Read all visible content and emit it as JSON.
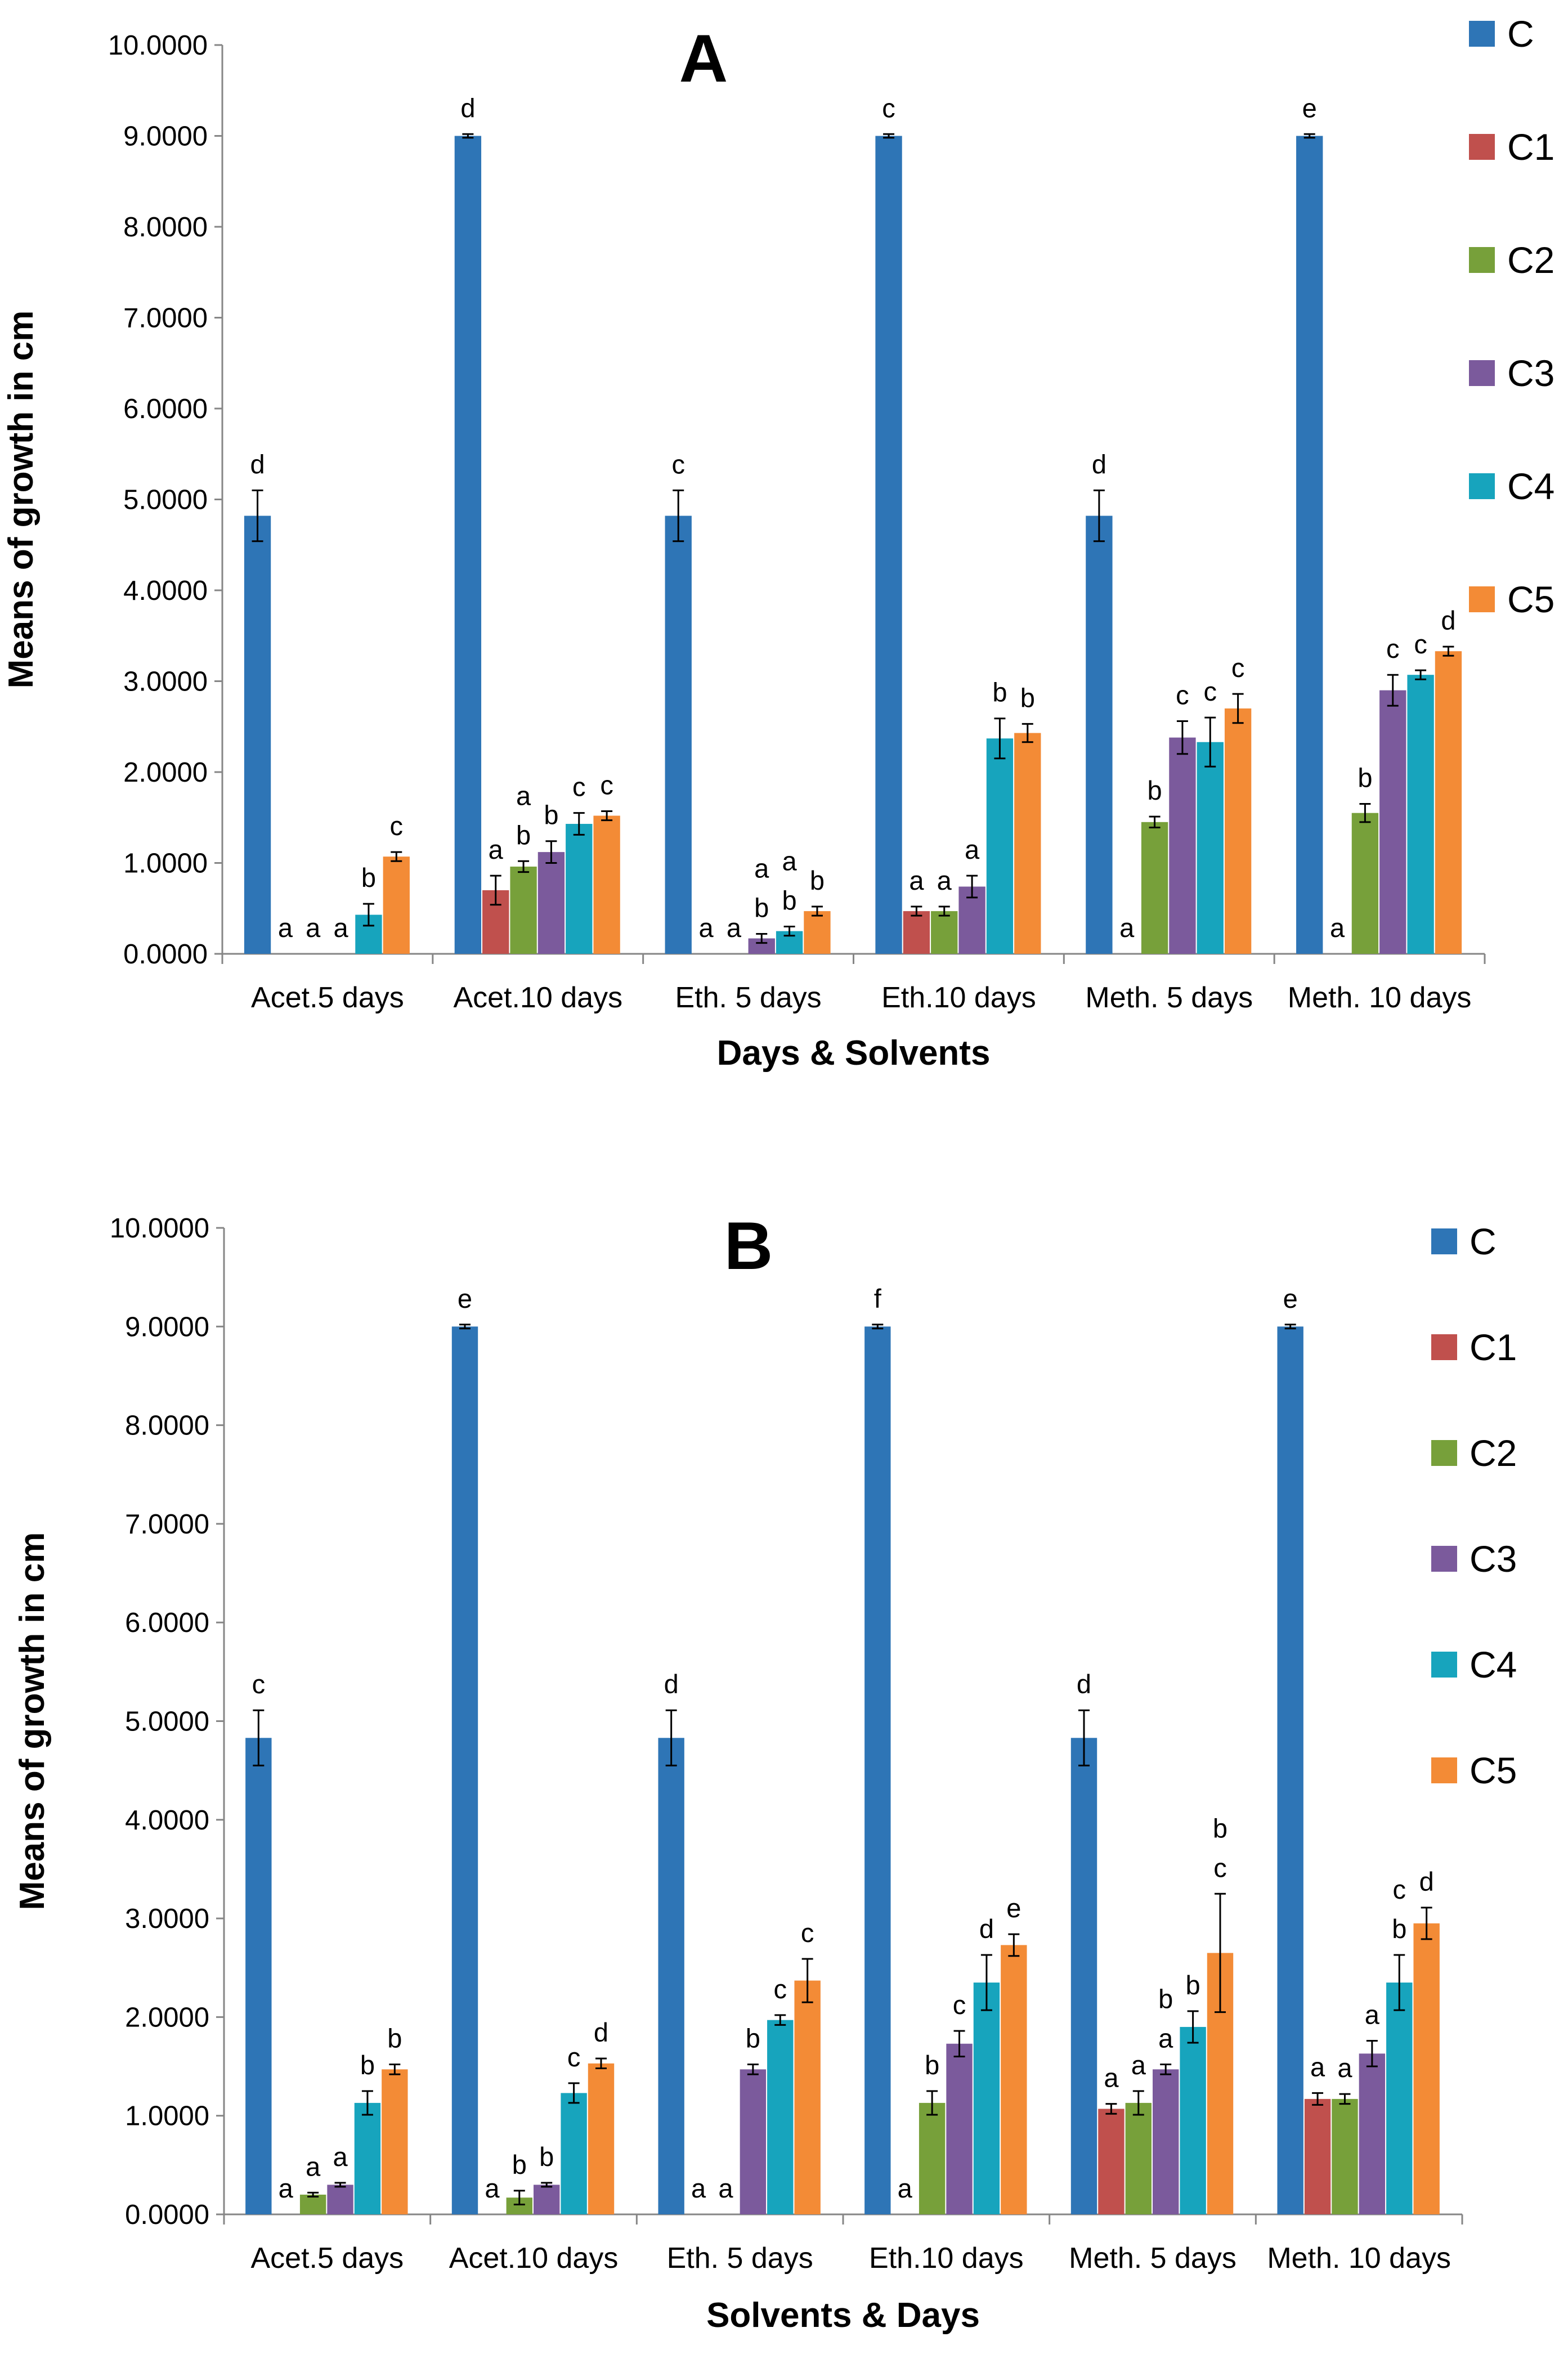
{
  "chart_data": [
    {
      "type": "bar",
      "title": "A",
      "xlabel": "Days & Solvents",
      "ylabel": "Means of growth in cm",
      "ylim": [
        0,
        10
      ],
      "yticks": [
        "0.0000",
        "1.0000",
        "2.0000",
        "3.0000",
        "4.0000",
        "5.0000",
        "6.0000",
        "7.0000",
        "8.0000",
        "9.0000",
        "10.0000"
      ],
      "categories": [
        "Acet.5 days",
        "Acet.10 days",
        "Eth. 5 days",
        "Eth.10 days",
        "Meth. 5 days",
        "Meth. 10 days"
      ],
      "legend_position": "right",
      "series": [
        {
          "name": "C",
          "color": "#2E75B6",
          "values": [
            4.82,
            9.0,
            4.82,
            9.0,
            4.82,
            9.0
          ],
          "errors": [
            0.28,
            0.02,
            0.28,
            0.02,
            0.28,
            0.02
          ],
          "letters": [
            "d",
            "d",
            "c",
            "c",
            "d",
            "e"
          ]
        },
        {
          "name": "C1",
          "color": "#C0504D",
          "values": [
            0,
            0.7,
            0,
            0.47,
            0,
            0
          ],
          "errors": [
            0,
            0.16,
            0,
            0.05,
            0,
            0
          ],
          "letters": [
            "a",
            "a",
            "a",
            "a",
            "a",
            "a"
          ]
        },
        {
          "name": "C2",
          "color": "#77A03A",
          "values": [
            0,
            0.96,
            0,
            0.47,
            1.45,
            1.55
          ],
          "errors": [
            0,
            0.06,
            0,
            0.05,
            0.06,
            0.1
          ],
          "letters": [
            "a",
            "b",
            "a",
            "a",
            "b",
            "b"
          ]
        },
        {
          "name": "C3",
          "color": "#7B5A9C",
          "values": [
            0,
            1.12,
            0.17,
            0.74,
            2.38,
            2.9
          ],
          "errors": [
            0,
            0.12,
            0.05,
            0.12,
            0.18,
            0.17
          ],
          "letters": [
            "a",
            "b",
            "b",
            "a",
            "c",
            "c"
          ]
        },
        {
          "name": "C4",
          "color": "#17A4BD",
          "values": [
            0.43,
            1.43,
            0.25,
            2.37,
            2.33,
            3.07
          ],
          "errors": [
            0.12,
            0.12,
            0.05,
            0.22,
            0.27,
            0.05
          ],
          "letters": [
            "b",
            "c",
            "b",
            "b",
            "c",
            "c"
          ]
        },
        {
          "name": "C5",
          "color": "#F38B36",
          "values": [
            1.07,
            1.52,
            0.47,
            2.43,
            2.7,
            3.33
          ],
          "errors": [
            0.05,
            0.05,
            0.05,
            0.1,
            0.16,
            0.05
          ],
          "letters": [
            "c",
            "c",
            "b",
            "b",
            "c",
            "d"
          ]
        }
      ],
      "extra_letters": [
        {
          "series": "C2",
          "category": "Acet.10 days",
          "text": "a"
        },
        {
          "series": "C4",
          "category": "Eth. 5 days",
          "text": "a"
        },
        {
          "series": "C3",
          "category": "Eth. 5 days",
          "text": "a"
        }
      ]
    },
    {
      "type": "bar",
      "title": "B",
      "xlabel": "Solvents & Days",
      "ylabel": "Means of growth in cm",
      "ylim": [
        0,
        10
      ],
      "yticks": [
        "0.0000",
        "1.0000",
        "2.0000",
        "3.0000",
        "4.0000",
        "5.0000",
        "6.0000",
        "7.0000",
        "8.0000",
        "9.0000",
        "10.0000"
      ],
      "categories": [
        "Acet.5 days",
        "Acet.10 days",
        "Eth. 5 days",
        "Eth.10 days",
        "Meth. 5 days",
        "Meth. 10 days"
      ],
      "legend_position": "right",
      "series": [
        {
          "name": "C",
          "color": "#2E75B6",
          "values": [
            4.83,
            9.0,
            4.83,
            9.0,
            4.83,
            9.0
          ],
          "errors": [
            0.28,
            0.02,
            0.28,
            0.02,
            0.28,
            0.02
          ],
          "letters": [
            "c",
            "e",
            "d",
            "f",
            "d",
            "e"
          ]
        },
        {
          "name": "C1",
          "color": "#C0504D",
          "values": [
            0,
            0,
            0,
            0,
            1.07,
            1.17
          ],
          "errors": [
            0,
            0,
            0,
            0,
            0.05,
            0.06
          ],
          "letters": [
            "a",
            "a",
            "a",
            "a",
            "a",
            "a"
          ]
        },
        {
          "name": "C2",
          "color": "#77A03A",
          "values": [
            0.2,
            0.17,
            0,
            1.13,
            1.13,
            1.17
          ],
          "errors": [
            0.02,
            0.07,
            0,
            0.12,
            0.12,
            0.05
          ],
          "letters": [
            "a",
            "b",
            "a",
            "b",
            "a",
            "a"
          ]
        },
        {
          "name": "C3",
          "color": "#7B5A9C",
          "values": [
            0.3,
            0.3,
            1.47,
            1.73,
            1.47,
            1.63
          ],
          "errors": [
            0.02,
            0.02,
            0.05,
            0.13,
            0.05,
            0.13
          ],
          "letters": [
            "a",
            "b",
            "b",
            "c",
            "a",
            "a"
          ]
        },
        {
          "name": "C4",
          "color": "#17A4BD",
          "values": [
            1.13,
            1.23,
            1.97,
            2.35,
            1.9,
            2.35
          ],
          "errors": [
            0.12,
            0.1,
            0.05,
            0.28,
            0.16,
            0.28
          ],
          "letters": [
            "b",
            "c",
            "c",
            "d",
            "b",
            "b"
          ]
        },
        {
          "name": "C5",
          "color": "#F38B36",
          "values": [
            1.47,
            1.53,
            2.37,
            2.73,
            2.65,
            2.95
          ],
          "errors": [
            0.05,
            0.05,
            0.22,
            0.11,
            0.6,
            0.16
          ],
          "letters": [
            "b",
            "d",
            "c",
            "e",
            "c",
            "d"
          ]
        }
      ],
      "extra_letters": [
        {
          "series": "C3",
          "category": "Meth. 5 days",
          "text": "b"
        },
        {
          "series": "C5",
          "category": "Meth. 5 days",
          "text": "b"
        },
        {
          "series": "C4",
          "category": "Meth. 10 days",
          "text": "c"
        }
      ]
    }
  ]
}
